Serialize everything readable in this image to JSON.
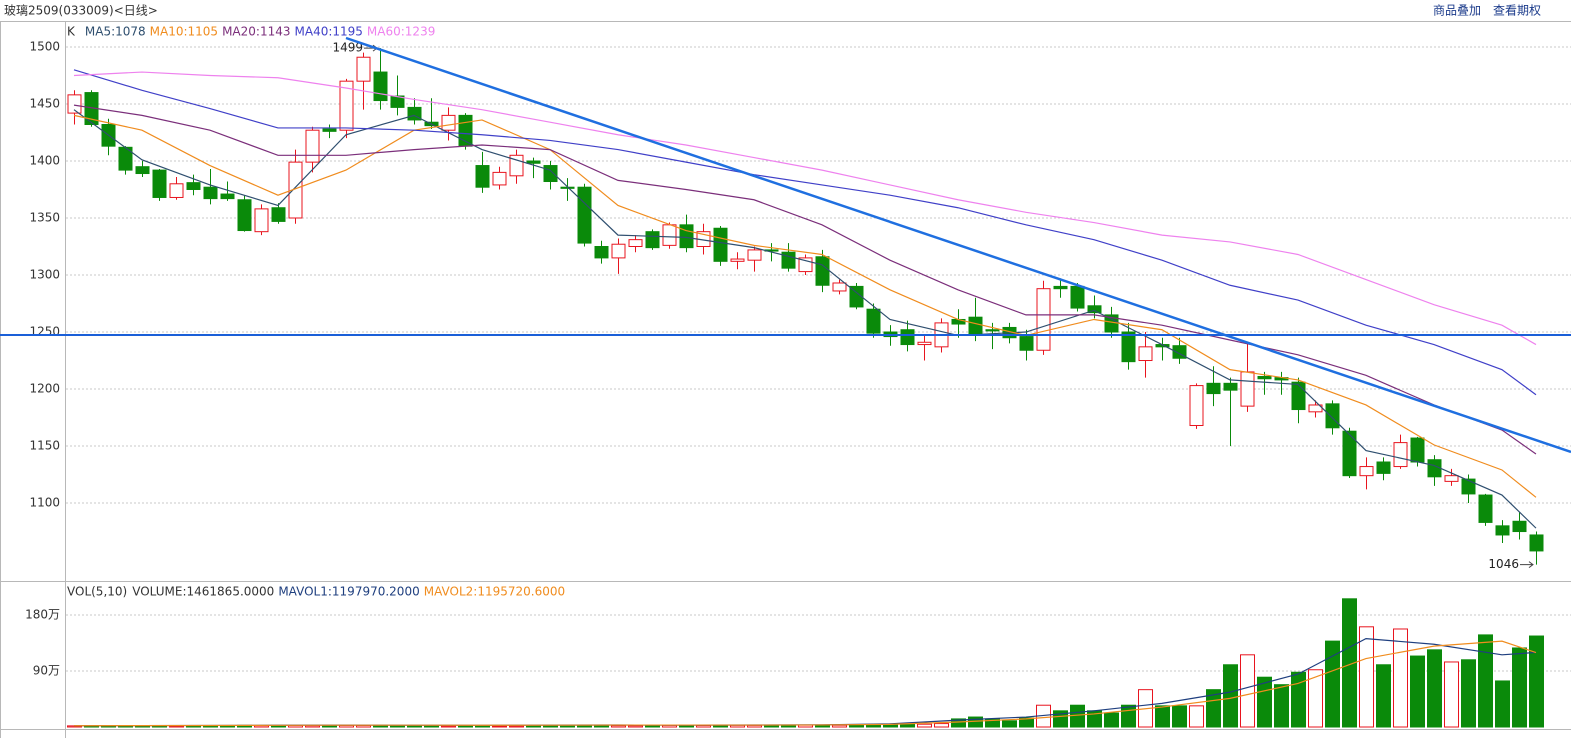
{
  "header": {
    "title": "玻璃2509(033009)<日线>",
    "links": [
      "商品叠加",
      "查看期权"
    ]
  },
  "chart_data": [
    {
      "type": "candlestick",
      "title": "K",
      "up_color": "#e8141e",
      "down_color": "#0a8a0a",
      "xlim": [
        -0.47,
        88.06
      ],
      "ylim": [
        1032.5,
        1521.9
      ],
      "yticks": [
        1100,
        1150,
        1200,
        1250,
        1300,
        1350,
        1400,
        1450,
        1500
      ],
      "grid": true,
      "open": [
        1442,
        1460,
        1432,
        1412,
        1395,
        1392,
        1368,
        1381,
        1377,
        1371,
        1366,
        1338,
        1359,
        1350,
        1399,
        1428,
        1427,
        1470,
        1478,
        1457,
        1447,
        1434,
        1427,
        1440,
        1396,
        1379,
        1387,
        1400,
        1396,
        1377,
        1377,
        1325,
        1315,
        1325,
        1338,
        1326,
        1344,
        1325,
        1341,
        1312,
        1313,
        1322,
        1320,
        1303,
        1316,
        1286,
        1290,
        1270,
        1250,
        1252,
        1239,
        1237,
        1261,
        1263,
        1252,
        1254,
        1246,
        1234,
        1290,
        1290,
        1273,
        1265,
        1250,
        1225,
        1239,
        1238,
        1168,
        1205,
        1205,
        1185,
        1211,
        1210,
        1206,
        1180,
        1187,
        1163,
        1124,
        1136,
        1132,
        1157,
        1138,
        1119,
        1121,
        1107,
        1080,
        1084,
        1072
      ],
      "high": [
        1462,
        1462,
        1437,
        1413,
        1400,
        1393,
        1386,
        1388,
        1393,
        1382,
        1370,
        1362,
        1363,
        1410,
        1430,
        1432,
        1472,
        1495,
        1499,
        1475,
        1455,
        1455,
        1447,
        1442,
        1408,
        1395,
        1410,
        1403,
        1400,
        1385,
        1380,
        1330,
        1332,
        1335,
        1340,
        1346,
        1353,
        1345,
        1343,
        1320,
        1325,
        1328,
        1328,
        1318,
        1322,
        1296,
        1293,
        1275,
        1256,
        1260,
        1247,
        1262,
        1270,
        1280,
        1258,
        1258,
        1252,
        1295,
        1297,
        1293,
        1282,
        1272,
        1258,
        1250,
        1245,
        1245,
        1205,
        1220,
        1210,
        1240,
        1215,
        1215,
        1210,
        1190,
        1190,
        1166,
        1140,
        1140,
        1160,
        1158,
        1142,
        1130,
        1125,
        1108,
        1085,
        1092,
        1075
      ],
      "low": [
        1432,
        1430,
        1405,
        1388,
        1386,
        1365,
        1366,
        1370,
        1362,
        1365,
        1338,
        1335,
        1345,
        1345,
        1390,
        1420,
        1420,
        1445,
        1445,
        1440,
        1432,
        1428,
        1418,
        1410,
        1372,
        1375,
        1380,
        1385,
        1375,
        1365,
        1325,
        1310,
        1301,
        1320,
        1322,
        1323,
        1320,
        1318,
        1308,
        1305,
        1303,
        1312,
        1303,
        1300,
        1285,
        1283,
        1270,
        1245,
        1238,
        1233,
        1225,
        1232,
        1245,
        1242,
        1235,
        1240,
        1225,
        1230,
        1280,
        1268,
        1262,
        1245,
        1217,
        1210,
        1225,
        1222,
        1165,
        1185,
        1150,
        1180,
        1195,
        1195,
        1170,
        1175,
        1160,
        1122,
        1112,
        1120,
        1130,
        1132,
        1115,
        1115,
        1100,
        1080,
        1065,
        1068,
        1046
      ],
      "close": [
        1458,
        1432,
        1413,
        1392,
        1389,
        1368,
        1380,
        1375,
        1367,
        1367,
        1339,
        1358,
        1347,
        1399,
        1427,
        1426,
        1470,
        1491,
        1453,
        1447,
        1436,
        1431,
        1440,
        1413,
        1377,
        1390,
        1405,
        1398,
        1382,
        1376,
        1328,
        1315,
        1327,
        1331,
        1324,
        1344,
        1324,
        1338,
        1312,
        1314,
        1322,
        1321,
        1306,
        1315,
        1291,
        1293,
        1272,
        1249,
        1246,
        1239,
        1241,
        1258,
        1257,
        1248,
        1251,
        1245,
        1234,
        1288,
        1288,
        1271,
        1267,
        1250,
        1224,
        1237,
        1237,
        1227,
        1203,
        1196,
        1199,
        1215,
        1209,
        1208,
        1182,
        1186,
        1166,
        1124,
        1132,
        1126,
        1153,
        1136,
        1123,
        1124,
        1108,
        1083,
        1072,
        1075,
        1058
      ],
      "series": [
        {
          "name": "MA5:1078",
          "color": "#2f4f6f",
          "x": [
            0,
            4,
            8,
            12,
            16,
            20,
            24,
            28,
            32,
            36,
            40,
            44,
            48,
            52,
            56,
            60,
            64,
            68,
            72,
            76,
            80,
            84,
            86
          ],
          "values": [
            1445,
            1401,
            1379,
            1361,
            1423,
            1440,
            1410,
            1392,
            1335,
            1333,
            1324,
            1309,
            1261,
            1247,
            1250,
            1269,
            1239,
            1208,
            1204,
            1146,
            1133,
            1107,
            1078
          ]
        },
        {
          "name": "MA10:1105",
          "color": "#f08c1e",
          "x": [
            0,
            4,
            8,
            12,
            16,
            20,
            24,
            28,
            32,
            36,
            40,
            44,
            48,
            52,
            56,
            60,
            64,
            68,
            72,
            76,
            80,
            84,
            86
          ],
          "values": [
            1440,
            1427,
            1396,
            1370,
            1392,
            1427,
            1436,
            1410,
            1361,
            1339,
            1326,
            1318,
            1287,
            1261,
            1247,
            1261,
            1252,
            1217,
            1208,
            1186,
            1151,
            1129,
            1105
          ]
        },
        {
          "name": "MA20:1143",
          "color": "#7b2f7b",
          "x": [
            0,
            4,
            8,
            12,
            16,
            20,
            24,
            28,
            32,
            36,
            40,
            44,
            48,
            52,
            56,
            60,
            64,
            68,
            72,
            76,
            80,
            84,
            86
          ],
          "values": [
            1449,
            1440,
            1427,
            1405,
            1405,
            1410,
            1414,
            1410,
            1383,
            1375,
            1366,
            1344,
            1313,
            1287,
            1265,
            1265,
            1256,
            1243,
            1230,
            1212,
            1186,
            1164,
            1143
          ]
        },
        {
          "name": "MA40:1195",
          "color": "#4040c8",
          "x": [
            0,
            4,
            8,
            12,
            16,
            20,
            24,
            28,
            32,
            36,
            40,
            44,
            48,
            52,
            56,
            60,
            64,
            68,
            72,
            76,
            80,
            84,
            86
          ],
          "values": [
            1480,
            1462,
            1446,
            1429,
            1429,
            1427,
            1423,
            1418,
            1410,
            1399,
            1388,
            1379,
            1370,
            1359,
            1344,
            1331,
            1313,
            1291,
            1278,
            1256,
            1239,
            1217,
            1195
          ]
        },
        {
          "name": "MA60:1239",
          "color": "#ee82ee",
          "x": [
            0,
            4,
            8,
            12,
            16,
            20,
            24,
            28,
            32,
            36,
            40,
            44,
            48,
            52,
            56,
            60,
            64,
            68,
            72,
            76,
            80,
            84,
            86
          ],
          "values": [
            1475,
            1478,
            1475,
            1473,
            1464,
            1454,
            1445,
            1434,
            1423,
            1414,
            1403,
            1392,
            1379,
            1366,
            1355,
            1346,
            1335,
            1329,
            1318,
            1296,
            1274,
            1256,
            1239
          ]
        }
      ],
      "annotations": [
        {
          "label": "1499",
          "x": 18,
          "y": 1499
        },
        {
          "label": "1046",
          "x": 86,
          "y": 1046
        }
      ]
    },
    {
      "type": "bar",
      "title": "VOL(5,10)",
      "up_color": "#e8141e",
      "down_color": "#0a8a0a",
      "xlim": [
        -0.47,
        88.06
      ],
      "ylim": [
        0,
        2330000
      ],
      "yticks": [
        {
          "value": 900000,
          "label": "90万"
        },
        {
          "value": 1800000,
          "label": "180万"
        }
      ],
      "grid": true,
      "series": [
        {
          "name": "VOLUME:1461865.0000",
          "values": [
            18000,
            22000,
            20000,
            18000,
            17000,
            21000,
            16000,
            18000,
            20000,
            19000,
            26000,
            22000,
            20000,
            24000,
            21000,
            20000,
            25000,
            24000,
            28000,
            22000,
            20000,
            18000,
            17000,
            19000,
            16000,
            15000,
            17000,
            16000,
            18000,
            15000,
            26000,
            24000,
            22000,
            20000,
            28000,
            26000,
            30000,
            24000,
            32000,
            27000,
            26000,
            25000,
            28000,
            30000,
            32000,
            28000,
            30000,
            40000,
            38000,
            42000,
            45000,
            55000,
            130000,
            160000,
            130000,
            100000,
            145000,
            350000,
            260000,
            350000,
            260000,
            225000,
            350000,
            600000,
            340000,
            340000,
            340000,
            600000,
            1000000,
            1160000,
            800000,
            680000,
            880000,
            920000,
            1380000,
            2060000,
            1610000,
            1000000,
            1575000,
            1140000,
            1240000,
            1045000,
            1080000,
            1480000,
            740000,
            1270000,
            1461865
          ]
        },
        {
          "name": "MAVOL1:1197970.2000",
          "color": "#1f3f7f",
          "x": [
            0,
            4,
            8,
            12,
            16,
            20,
            24,
            28,
            32,
            36,
            40,
            44,
            48,
            52,
            56,
            60,
            64,
            68,
            72,
            76,
            80,
            84,
            86
          ],
          "values": [
            20000,
            22000,
            25000,
            28000,
            30000,
            28000,
            27000,
            30000,
            32000,
            30000,
            32000,
            35000,
            50000,
            110000,
            160000,
            260000,
            380000,
            560000,
            850000,
            1420000,
            1330000,
            1160000,
            1197970
          ]
        },
        {
          "name": "MAVOL2:1195720.6000",
          "color": "#f08c1e",
          "x": [
            0,
            4,
            8,
            12,
            16,
            20,
            24,
            28,
            32,
            36,
            40,
            44,
            48,
            52,
            56,
            60,
            64,
            68,
            72,
            76,
            80,
            84,
            86
          ],
          "values": [
            20000,
            22000,
            24000,
            27000,
            29000,
            29000,
            28000,
            29000,
            31000,
            31000,
            31000,
            33000,
            42000,
            80000,
            130000,
            210000,
            320000,
            460000,
            700000,
            1100000,
            1300000,
            1380000,
            1195721
          ]
        }
      ]
    }
  ]
}
